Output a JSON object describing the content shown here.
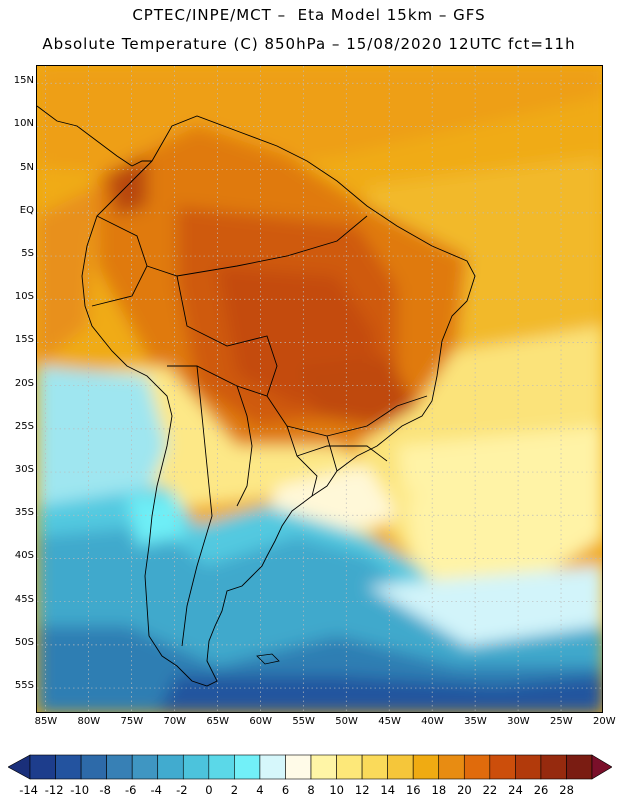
{
  "header": {
    "line1": "CPTEC/INPE/MCT –  Eta Model 15km – GFS",
    "line2": "Absolute Temperature (C) 850hPa – 15/08/2020 12UTC fct=11h"
  },
  "axes": {
    "lat_labels": [
      "15N",
      "10N",
      "5N",
      "EQ",
      "5S",
      "10S",
      "15S",
      "20S",
      "25S",
      "30S",
      "35S",
      "40S",
      "45S",
      "50S",
      "55S"
    ],
    "lat_values": [
      15,
      10,
      5,
      0,
      -5,
      -10,
      -15,
      -20,
      -25,
      -30,
      -35,
      -40,
      -45,
      -50,
      -55
    ],
    "lon_labels": [
      "85W",
      "80W",
      "75W",
      "70W",
      "65W",
      "60W",
      "55W",
      "50W",
      "45W",
      "40W",
      "35W",
      "30W",
      "25W",
      "20W"
    ],
    "lon_values": [
      -85,
      -80,
      -75,
      -70,
      -65,
      -60,
      -55,
      -50,
      -45,
      -40,
      -35,
      -30,
      -25,
      -20
    ],
    "lat_range": [
      -58,
      17
    ],
    "lon_range": [
      -86,
      -20
    ]
  },
  "colorbar": {
    "labels": [
      "-14",
      "-12",
      "-10",
      "-8",
      "-6",
      "-4",
      "-2",
      "0",
      "2",
      "4",
      "6",
      "8",
      "10",
      "12",
      "14",
      "16",
      "18",
      "20",
      "22",
      "24",
      "26",
      "28"
    ],
    "colors": [
      "#1d3d8c",
      "#23539f",
      "#2d6aa9",
      "#3780b5",
      "#3f96c2",
      "#41abcf",
      "#4cc3dc",
      "#5bd8e8",
      "#72f0f8",
      "#d6f7fb",
      "#fffbe8",
      "#fff5a6",
      "#fde879",
      "#fada5a",
      "#f5c63a",
      "#f0ab12",
      "#e88c12",
      "#e06b0c",
      "#cc4e0b",
      "#b23a0b",
      "#962a0e",
      "#7a1c12"
    ],
    "low_arrow_color": "#1a2f7a",
    "high_arrow_color": "#7a0f2a"
  }
}
